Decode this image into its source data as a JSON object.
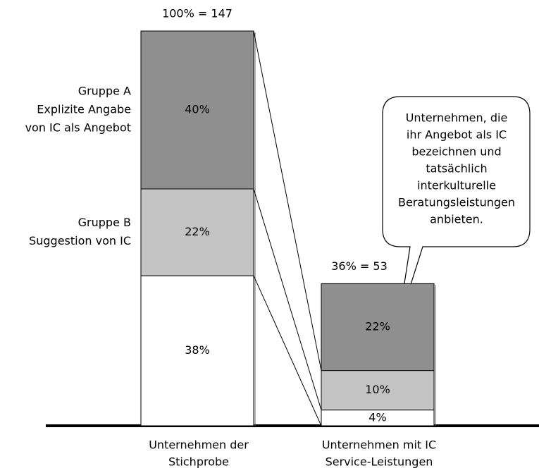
{
  "chart_data": {
    "type": "stacked_bar",
    "categories": [
      [
        "Unternehmen der",
        "Stichprobe"
      ],
      [
        "Unternehmen mit IC",
        "Service-Leistungen"
      ]
    ],
    "total_labels": [
      "100% = 147",
      "36% = 53"
    ],
    "series": [
      {
        "name": "Gruppe A",
        "description": [
          "Explizite Angabe",
          "von IC als Angebot"
        ],
        "color": "#8f8f8f",
        "values": [
          40,
          22
        ],
        "value_labels": [
          "40%",
          "22%"
        ]
      },
      {
        "name": "Gruppe B",
        "description": [
          "Suggestion von IC"
        ],
        "color": "#c4c4c4",
        "values": [
          22,
          10
        ],
        "value_labels": [
          "22%",
          "10%"
        ]
      },
      {
        "name": null,
        "color": "#ffffff",
        "values": [
          38,
          4
        ],
        "value_labels": [
          "38%",
          "4%"
        ]
      }
    ],
    "annotation": [
      "Unternehmen, die",
      "ihr Angebot als IC",
      "bezeichnen und",
      "tatsächlich",
      "interkulturelle",
      "Beratungsleistungen",
      "anbieten."
    ]
  }
}
